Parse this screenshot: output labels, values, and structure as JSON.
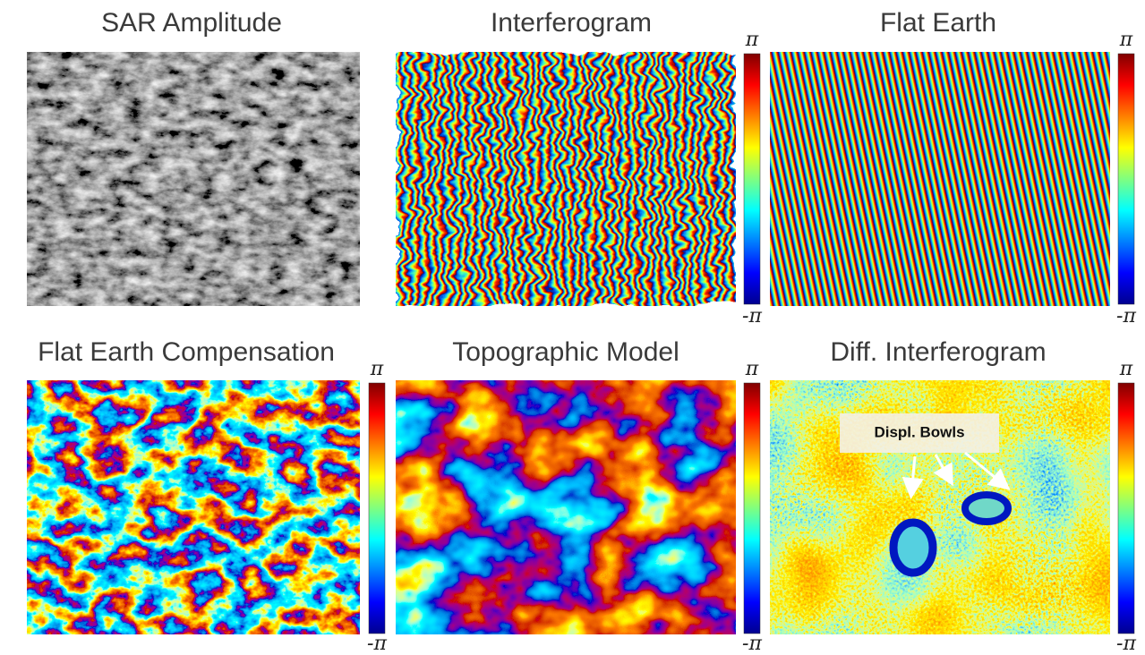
{
  "panels": [
    {
      "title": "SAR Amplitude"
    },
    {
      "title": "Interferogram",
      "colorbar": {
        "max_label": "π",
        "min_label": "-π"
      }
    },
    {
      "title": "Flat Earth",
      "colorbar": {
        "max_label": "π",
        "min_label": "-π"
      }
    },
    {
      "title": "Flat Earth Compensation",
      "colorbar": {
        "max_label": "π",
        "min_label": "-π"
      }
    },
    {
      "title": "Topographic Model",
      "colorbar": {
        "max_label": "π",
        "min_label": "-π"
      }
    },
    {
      "title": "Diff. Interferogram",
      "colorbar": {
        "max_label": "π",
        "min_label": "-π"
      },
      "annotation": "Displ. Bowls"
    }
  ]
}
